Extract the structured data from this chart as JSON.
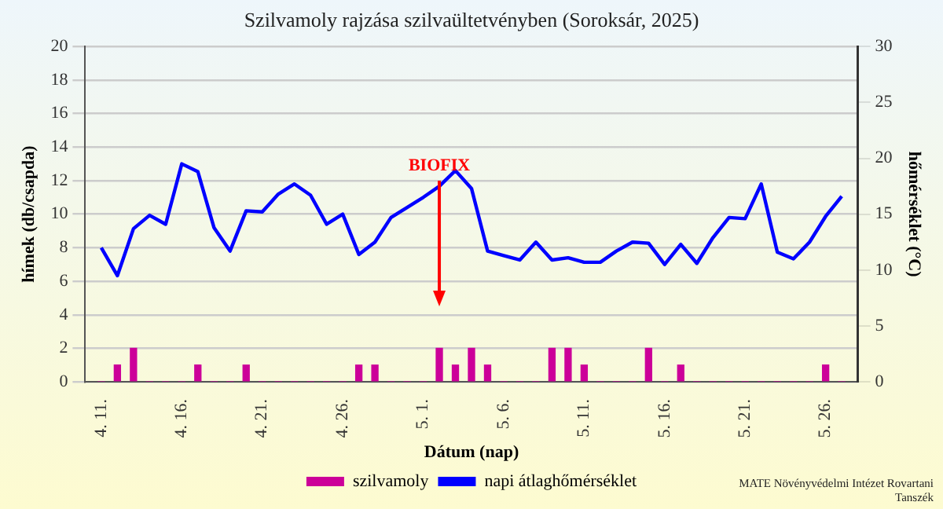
{
  "chart_data": {
    "type": "bar",
    "title": "Szilvamoly rajzása szilvaültetvényben (Soroksár, 2025)",
    "xlabel": "Dátum (nap)",
    "ylabel": "hímek (db/csapda)",
    "y2label": "hőmérséklet (°C)",
    "x": [
      "--04-11",
      "--04-12",
      "--04-13",
      "--04-14",
      "--04-15",
      "--04-16",
      "--04-17",
      "--04-18",
      "--04-19",
      "--04-20",
      "--04-21",
      "--04-22",
      "--04-23",
      "--04-24",
      "--04-25",
      "--04-26",
      "--04-27",
      "--04-28",
      "--04-29",
      "--04-30",
      "--05-01",
      "--05-02",
      "--05-03",
      "--05-04",
      "--05-05",
      "--05-06",
      "--05-07",
      "--05-08",
      "--05-09",
      "--05-10",
      "--05-11",
      "--05-12",
      "--05-13",
      "--05-14",
      "--05-15",
      "--05-16",
      "--05-17",
      "--05-18",
      "--05-19",
      "--05-20",
      "--05-21",
      "--05-22",
      "--05-23",
      "--05-24",
      "--05-25",
      "--05-26",
      "--05-27"
    ],
    "series": [
      {
        "name": "szilvamoly",
        "color": "#cc0099",
        "values": [
          0,
          1,
          2,
          0,
          0,
          0,
          1,
          0,
          0,
          1,
          0,
          0,
          0,
          0,
          0,
          0,
          1,
          1,
          0,
          0,
          0,
          2,
          1,
          2,
          1,
          0,
          0,
          0,
          2,
          2,
          1,
          0,
          0,
          0,
          2,
          0,
          1,
          0,
          0,
          0,
          0,
          0,
          0,
          0,
          0,
          1,
          0
        ]
      },
      {
        "name": "napi átlaghőmérséklet",
        "type": "line",
        "axis": "y2",
        "color": "#0000ff",
        "values": [
          12,
          9.5,
          13.7,
          14.9,
          14.1,
          19.5,
          18.8,
          13.8,
          11.7,
          15.3,
          15.2,
          16.8,
          17.7,
          16.7,
          14.1,
          15,
          11.4,
          12.5,
          14.7,
          15.6,
          16.5,
          17.5,
          18.9,
          17.3,
          11.7,
          11.3,
          10.9,
          12.5,
          10.9,
          11.1,
          10.7,
          10.7,
          11.7,
          12.5,
          12.4,
          10.5,
          12.3,
          10.6,
          12.9,
          14.7,
          14.6,
          17.7,
          11.6,
          11,
          12.5,
          14.8,
          16.6
        ]
      }
    ],
    "xlim": [
      "--04-10",
      "--05-28"
    ],
    "xticks": [
      {
        "value": "--04-11",
        "label": "4. 11."
      },
      {
        "value": "--04-16",
        "label": "4. 16."
      },
      {
        "value": "--04-21",
        "label": "4. 21."
      },
      {
        "value": "--04-26",
        "label": "4. 26."
      },
      {
        "value": "--05-01",
        "label": "5. 1."
      },
      {
        "value": "--05-06",
        "label": "5. 6."
      },
      {
        "value": "--05-11",
        "label": "5. 11."
      },
      {
        "value": "--05-16",
        "label": "5. 16."
      },
      {
        "value": "--05-21",
        "label": "5. 21."
      },
      {
        "value": "--05-26",
        "label": "5. 26."
      }
    ],
    "ylim": [
      0,
      20
    ],
    "yticks": [
      0,
      2,
      4,
      6,
      8,
      10,
      12,
      14,
      16,
      18,
      20
    ],
    "y2lim": [
      0,
      30
    ],
    "y2ticks": [
      0,
      5,
      10,
      15,
      20,
      25,
      30
    ],
    "annotations": [
      {
        "text": "BIOFIX",
        "x": "--05-02",
        "y": 12
      },
      "MATE Növényvédelmi Intézet Rovartani Tanszék"
    ],
    "grid": "y",
    "legend": "bottom",
    "marker": "none",
    "line_style": "solid"
  }
}
